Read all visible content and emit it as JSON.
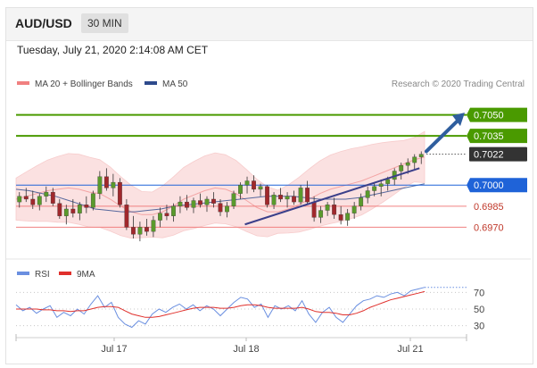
{
  "header": {
    "pair": "AUD/USD",
    "timeframe": "30 MIN"
  },
  "timestamp": "Tuesday, July 21, 2020 2:14:08 AM CET",
  "legend": {
    "bb": "MA 20 + Bollinger Bands",
    "ma50": "MA 50",
    "credit": "Research © 2020 Trading Central"
  },
  "rsi_legend": {
    "rsi": "RSI",
    "ma": "9MA"
  },
  "colors": {
    "green": "#4a9a00",
    "dark": "#333333",
    "blue": "#1f63d8",
    "red": "#f08080",
    "candle_up": "#5a9a2c",
    "candle_down": "#a0282c",
    "bb_fill": "#fbdcdc",
    "ma50": "#2e4a8c",
    "rsi": "#6a8fe0",
    "rsi_ma": "#e0302c"
  },
  "chart_data": [
    {
      "type": "candlestick",
      "title": "AUD/USD",
      "timeframe": "30 MIN",
      "x_ticks": [
        "Jul 17",
        "Jul 18",
        "Jul 21"
      ],
      "ylim": [
        0.6955,
        0.7065
      ],
      "levels": [
        {
          "value": 0.705,
          "label": "0.7050",
          "style": "resistance",
          "color": "#4a9a00"
        },
        {
          "value": 0.7035,
          "label": "0.7035",
          "style": "resistance",
          "color": "#4a9a00"
        },
        {
          "value": 0.7022,
          "label": "0.7022",
          "style": "last-price",
          "color": "#333333"
        },
        {
          "value": 0.7,
          "label": "0.7000",
          "style": "pivot",
          "color": "#1f63d8"
        },
        {
          "value": 0.6985,
          "label": "0.6985",
          "style": "support",
          "color": "#f08080"
        },
        {
          "value": 0.697,
          "label": "0.6970",
          "style": "support",
          "color": "#f08080"
        }
      ],
      "series": [
        {
          "name": "MA 20 + Bollinger Bands",
          "values": [
            0.699,
            0.6992,
            0.6994,
            0.6996,
            0.6997,
            0.6998,
            0.6997,
            0.6995,
            0.6994,
            0.699,
            0.6985,
            0.6981,
            0.6979,
            0.6979,
            0.6981,
            0.6985,
            0.699,
            0.6993,
            0.6996,
            0.6998,
            0.6997,
            0.6994,
            0.6989,
            0.6984,
            0.6981,
            0.6981,
            0.6983,
            0.6986,
            0.699,
            0.6994,
            0.6997,
            0.6999,
            0.7001,
            0.7003,
            0.7006,
            0.7009,
            0.7012,
            0.7015,
            0.7018,
            0.702
          ]
        },
        {
          "name": "MA 50",
          "values": [
            0.6997,
            0.6996,
            0.6994,
            0.6992,
            0.6989,
            0.6986,
            0.6983,
            0.6982,
            0.6981,
            0.6981,
            0.6982,
            0.6983,
            0.6985,
            0.6986,
            0.6987,
            0.6988,
            0.6989,
            0.699,
            0.6991,
            0.6992,
            0.6992,
            0.6992,
            0.6991,
            0.699,
            0.699,
            0.699,
            0.6991,
            0.6993,
            0.6995,
            0.6997,
            0.6999,
            0.7001
          ]
        }
      ],
      "candles": [
        [
          0.6988,
          0.6995,
          0.6984,
          0.6992
        ],
        [
          0.6992,
          0.6998,
          0.6988,
          0.699
        ],
        [
          0.699,
          0.6996,
          0.6983,
          0.6986
        ],
        [
          0.6986,
          0.6994,
          0.6982,
          0.6992
        ],
        [
          0.6992,
          0.6999,
          0.6988,
          0.6995
        ],
        [
          0.6995,
          0.6998,
          0.6985,
          0.6987
        ],
        [
          0.6987,
          0.699,
          0.6976,
          0.6978
        ],
        [
          0.6978,
          0.6986,
          0.6972,
          0.6983
        ],
        [
          0.6983,
          0.699,
          0.6977,
          0.698
        ],
        [
          0.698,
          0.6988,
          0.6975,
          0.6986
        ],
        [
          0.6986,
          0.6992,
          0.698,
          0.6984
        ],
        [
          0.6984,
          0.6996,
          0.6982,
          0.6994
        ],
        [
          0.6994,
          0.701,
          0.699,
          0.7006
        ],
        [
          0.7006,
          0.7012,
          0.6996,
          0.6998
        ],
        [
          0.6998,
          0.7008,
          0.6992,
          0.7002
        ],
        [
          0.7002,
          0.7005,
          0.6984,
          0.6986
        ],
        [
          0.6986,
          0.699,
          0.6968,
          0.697
        ],
        [
          0.697,
          0.6978,
          0.6962,
          0.6965
        ],
        [
          0.6965,
          0.6974,
          0.696,
          0.697
        ],
        [
          0.697,
          0.6976,
          0.6964,
          0.6967
        ],
        [
          0.6967,
          0.6978,
          0.6963,
          0.6975
        ],
        [
          0.6975,
          0.6984,
          0.697,
          0.698
        ],
        [
          0.698,
          0.6986,
          0.6975,
          0.6978
        ],
        [
          0.6978,
          0.6987,
          0.6974,
          0.6985
        ],
        [
          0.6985,
          0.6992,
          0.698,
          0.6988
        ],
        [
          0.6988,
          0.6993,
          0.6982,
          0.6984
        ],
        [
          0.6984,
          0.6991,
          0.698,
          0.6989
        ],
        [
          0.6989,
          0.6994,
          0.6984,
          0.6986
        ],
        [
          0.6986,
          0.6992,
          0.6981,
          0.699
        ],
        [
          0.699,
          0.6995,
          0.6984,
          0.6987
        ],
        [
          0.6987,
          0.699,
          0.6978,
          0.6981
        ],
        [
          0.6981,
          0.6988,
          0.6977,
          0.6985
        ],
        [
          0.6985,
          0.6996,
          0.6983,
          0.6994
        ],
        [
          0.6994,
          0.7002,
          0.699,
          0.7
        ],
        [
          0.7,
          0.7006,
          0.6994,
          0.7003
        ],
        [
          0.7003,
          0.7007,
          0.6995,
          0.6997
        ],
        [
          0.6997,
          0.7001,
          0.6992,
          0.6999
        ],
        [
          0.6999,
          0.7,
          0.6984,
          0.6986
        ],
        [
          0.6986,
          0.6995,
          0.6983,
          0.6993
        ],
        [
          0.6993,
          0.6998,
          0.6988,
          0.699
        ],
        [
          0.699,
          0.6995,
          0.6984,
          0.6992
        ],
        [
          0.6992,
          0.6996,
          0.6986,
          0.6988
        ],
        [
          0.6988,
          0.7,
          0.6986,
          0.6998
        ],
        [
          0.6998,
          0.7003,
          0.6986,
          0.6988
        ],
        [
          0.6988,
          0.6992,
          0.6974,
          0.6977
        ],
        [
          0.6977,
          0.6985,
          0.6973,
          0.6982
        ],
        [
          0.6982,
          0.6988,
          0.6978,
          0.6986
        ],
        [
          0.6986,
          0.6991,
          0.6976,
          0.6979
        ],
        [
          0.6979,
          0.6985,
          0.6972,
          0.6975
        ],
        [
          0.6975,
          0.6983,
          0.6971,
          0.698
        ],
        [
          0.698,
          0.6988,
          0.6976,
          0.6985
        ],
        [
          0.6985,
          0.6994,
          0.6982,
          0.6991
        ],
        [
          0.6991,
          0.6999,
          0.6987,
          0.6996
        ],
        [
          0.6996,
          0.7002,
          0.6992,
          0.6999
        ],
        [
          0.6999,
          0.7004,
          0.6992,
          0.7001
        ],
        [
          0.7001,
          0.7006,
          0.6996,
          0.7004
        ],
        [
          0.7004,
          0.7012,
          0.7,
          0.701
        ],
        [
          0.701,
          0.7016,
          0.7004,
          0.7014
        ],
        [
          0.7014,
          0.7019,
          0.7008,
          0.7016
        ],
        [
          0.7016,
          0.7022,
          0.7011,
          0.702
        ],
        [
          0.702,
          0.7024,
          0.7015,
          0.7022
        ]
      ],
      "trendlines": [
        "rising support",
        "projected up-arrow toward 0.7050"
      ]
    },
    {
      "type": "line",
      "title": "RSI",
      "ylim": [
        20,
        80
      ],
      "y_ticks": [
        70,
        50,
        30
      ],
      "series": [
        {
          "name": "RSI",
          "values": [
            55,
            48,
            52,
            45,
            50,
            54,
            40,
            46,
            42,
            50,
            44,
            56,
            66,
            52,
            58,
            40,
            32,
            28,
            36,
            32,
            44,
            50,
            46,
            52,
            56,
            50,
            55,
            48,
            54,
            50,
            42,
            50,
            58,
            64,
            62,
            52,
            56,
            40,
            54,
            50,
            54,
            48,
            60,
            44,
            34,
            46,
            52,
            40,
            34,
            44,
            54,
            60,
            62,
            66,
            64,
            68,
            70,
            66,
            72,
            74,
            76
          ]
        },
        {
          "name": "9MA",
          "values": [
            50,
            50,
            50,
            50,
            49,
            49,
            48,
            48,
            47,
            48,
            48,
            50,
            52,
            53,
            53,
            52,
            48,
            44,
            42,
            40,
            40,
            41,
            43,
            45,
            47,
            49,
            51,
            52,
            52,
            52,
            51,
            51,
            52,
            54,
            55,
            55,
            54,
            52,
            51,
            51,
            51,
            51,
            52,
            50,
            47,
            46,
            46,
            45,
            43,
            43,
            45,
            48,
            52,
            55,
            58,
            61,
            63,
            65,
            67,
            69,
            71
          ]
        }
      ]
    }
  ]
}
